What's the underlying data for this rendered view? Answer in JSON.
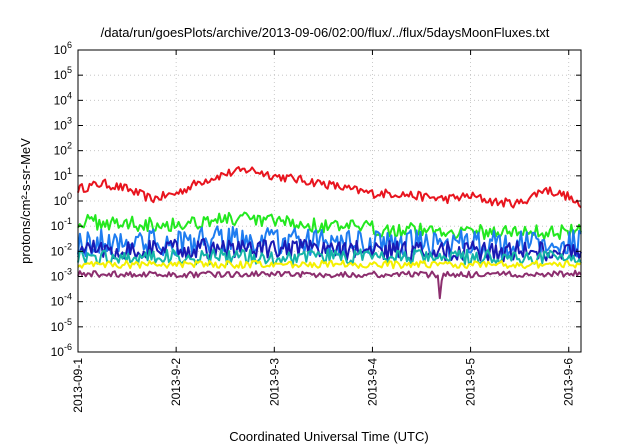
{
  "chart_data": {
    "type": "line",
    "title": "/data/run/goesPlots/archive/2013-09-06/02:00/flux/../flux/5daysMoonFluxes.txt",
    "xlabel": "Coordinated Universal Time (UTC)",
    "ylabel": "protons/cm²-s-sr-MeV",
    "yscale": "log",
    "ylim": [
      1e-06,
      1000000.0
    ],
    "y_ticks": [
      {
        "value": 1e-06,
        "base": "10",
        "exp": "-6"
      },
      {
        "value": 1e-05,
        "base": "10",
        "exp": "-5"
      },
      {
        "value": 0.0001,
        "base": "10",
        "exp": "-4"
      },
      {
        "value": 0.001,
        "base": "10",
        "exp": "-3"
      },
      {
        "value": 0.01,
        "base": "10",
        "exp": "-2"
      },
      {
        "value": 0.1,
        "base": "10",
        "exp": "-1"
      },
      {
        "value": 1.0,
        "base": "10",
        "exp": "0"
      },
      {
        "value": 10.0,
        "base": "10",
        "exp": "1"
      },
      {
        "value": 100.0,
        "base": "10",
        "exp": "2"
      },
      {
        "value": 1000.0,
        "base": "10",
        "exp": "3"
      },
      {
        "value": 10000.0,
        "base": "10",
        "exp": "4"
      },
      {
        "value": 100000.0,
        "base": "10",
        "exp": "5"
      },
      {
        "value": 1000000.0,
        "base": "10",
        "exp": "6"
      }
    ],
    "xlim": [
      "2013-09-01",
      "2013-09-06T03:00"
    ],
    "x_ticks": [
      "2013-09-01",
      "2013-09-02",
      "2013-09-03",
      "2013-09-04",
      "2013-09-05",
      "2013-09-06"
    ],
    "x_tick_labels": [
      "2013-09-1",
      "2013-9-2",
      "2013-9-3",
      "2013-9-4",
      "2013-9-5",
      "2013-9-6"
    ],
    "grid": true,
    "series": [
      {
        "color": "#e8141e",
        "x": [
          "2013-09-01",
          "2013-09-01T06:00",
          "2013-09-01T12:00",
          "2013-09-01T18:00",
          "2013-09-02",
          "2013-09-02T06:00",
          "2013-09-02T12:00",
          "2013-09-02T18:00",
          "2013-09-03",
          "2013-09-03T06:00",
          "2013-09-03T12:00",
          "2013-09-03T18:00",
          "2013-09-04",
          "2013-09-04T06:00",
          "2013-09-04T12:00",
          "2013-09-04T18:00",
          "2013-09-05",
          "2013-09-05T06:00",
          "2013-09-05T12:00",
          "2013-09-05T18:00",
          "2013-09-06",
          "2013-09-06T03:00"
        ],
        "y": [
          3,
          5,
          3,
          1.2,
          2,
          6,
          12,
          18,
          10,
          7,
          5,
          3,
          2,
          2,
          1.5,
          1.2,
          1.6,
          0.9,
          0.8,
          3,
          1.5,
          0.5
        ],
        "noise": 0.18
      },
      {
        "color": "#23e81f",
        "x": [
          "2013-09-01",
          "2013-09-01T12:00",
          "2013-09-02",
          "2013-09-02T12:00",
          "2013-09-03",
          "2013-09-03T12:00",
          "2013-09-04",
          "2013-09-04T12:00",
          "2013-09-05",
          "2013-09-05T12:00",
          "2013-09-06",
          "2013-09-06T03:00"
        ],
        "y": [
          0.15,
          0.13,
          0.12,
          0.2,
          0.15,
          0.1,
          0.08,
          0.07,
          0.06,
          0.06,
          0.06,
          0.08
        ],
        "noise": 0.3
      },
      {
        "color": "#1e7cf0",
        "x": [
          "2013-09-01",
          "2013-09-01T12:00",
          "2013-09-02",
          "2013-09-02T12:00",
          "2013-09-03",
          "2013-09-03T12:00",
          "2013-09-04",
          "2013-09-04T12:00",
          "2013-09-05",
          "2013-09-05T12:00",
          "2013-09-06",
          "2013-09-06T03:00"
        ],
        "y": [
          0.02,
          0.025,
          0.02,
          0.03,
          0.025,
          0.02,
          0.02,
          0.02,
          0.02,
          0.02,
          0.02,
          0.02
        ],
        "noise": 0.55
      },
      {
        "color": "#1a1ab4",
        "x": [
          "2013-09-01",
          "2013-09-01T12:00",
          "2013-09-02",
          "2013-09-02T12:00",
          "2013-09-03",
          "2013-09-03T12:00",
          "2013-09-04",
          "2013-09-04T12:00",
          "2013-09-05",
          "2013-09-05T12:00",
          "2013-09-06",
          "2013-09-06T03:00"
        ],
        "y": [
          0.012,
          0.012,
          0.012,
          0.013,
          0.012,
          0.011,
          0.011,
          0.01,
          0.01,
          0.01,
          0.011,
          0.01
        ],
        "noise": 0.4
      },
      {
        "color": "#15b4a8",
        "x": [
          "2013-09-01",
          "2013-09-01T12:00",
          "2013-09-02",
          "2013-09-02T12:00",
          "2013-09-03",
          "2013-09-03T12:00",
          "2013-09-04",
          "2013-09-04T12:00",
          "2013-09-05",
          "2013-09-05T12:00",
          "2013-09-06",
          "2013-09-06T03:00"
        ],
        "y": [
          0.006,
          0.006,
          0.006,
          0.006,
          0.006,
          0.006,
          0.006,
          0.006,
          0.006,
          0.006,
          0.006,
          0.006
        ],
        "noise": 0.3
      },
      {
        "color": "#f5f000",
        "x": [
          "2013-09-01",
          "2013-09-01T12:00",
          "2013-09-02",
          "2013-09-02T12:00",
          "2013-09-03",
          "2013-09-03T12:00",
          "2013-09-04",
          "2013-09-04T12:00",
          "2013-09-05",
          "2013-09-05T12:00",
          "2013-09-06",
          "2013-09-06T03:00"
        ],
        "y": [
          0.003,
          0.003,
          0.003,
          0.003,
          0.003,
          0.003,
          0.003,
          0.003,
          0.003,
          0.003,
          0.003,
          0.003
        ],
        "noise": 0.15
      },
      {
        "color": "#8c2e6e",
        "x": [
          "2013-09-01",
          "2013-09-01T12:00",
          "2013-09-02",
          "2013-09-02T12:00",
          "2013-09-03",
          "2013-09-03T12:00",
          "2013-09-04",
          "2013-09-04T12:00",
          "2013-09-04T16:00",
          "2013-09-04T16:30",
          "2013-09-04T17:00",
          "2013-09-05",
          "2013-09-05T12:00",
          "2013-09-06",
          "2013-09-06T03:00"
        ],
        "y": [
          0.0013,
          0.0012,
          0.0012,
          0.0012,
          0.0013,
          0.0012,
          0.0012,
          0.0012,
          0.0012,
          0.0001,
          0.0012,
          0.0012,
          0.0012,
          0.0013,
          0.0013
        ],
        "noise": 0.12
      }
    ]
  }
}
